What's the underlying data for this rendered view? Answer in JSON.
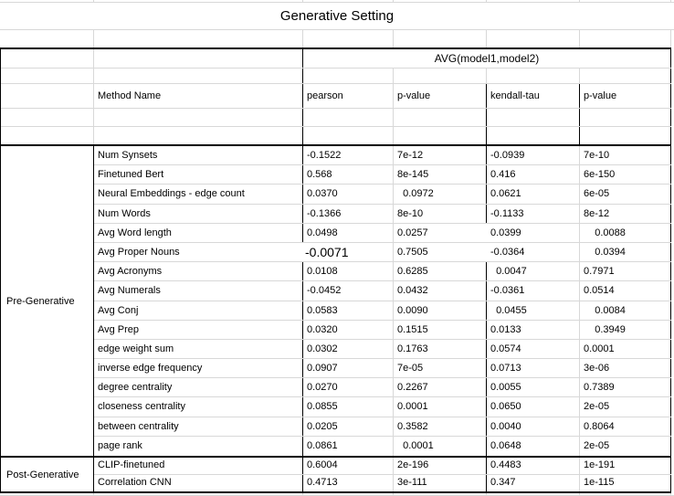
{
  "title": "Generative Setting",
  "header": {
    "group_header": "AVG(model1,model2)",
    "method_col": "Method Name",
    "cols": [
      "pearson",
      "p-value",
      "kendall-tau",
      "p-value"
    ]
  },
  "groups": [
    {
      "label": "Pre-Generative",
      "rows": [
        {
          "method": "Num Synsets",
          "pearson": "-0.1522",
          "p1": "7e-12",
          "kendall": "-0.0939",
          "p2": "7e-10",
          "flags": ""
        },
        {
          "method": "Finetuned Bert",
          "pearson": "0.568",
          "p1": "8e-145",
          "kendall": "0.416",
          "p2": "6e-150",
          "flags": ""
        },
        {
          "method": "Neural Embeddings - edge count",
          "pearson": "0.0370",
          "p1": "  0.0972",
          "kendall": "0.0621",
          "p2": "6e-05",
          "flags": ""
        },
        {
          "method": "Num Words",
          "pearson": "-0.1366",
          "p1": "8e-10",
          "kendall": "-0.1133",
          "p2": "8e-12",
          "flags": ""
        },
        {
          "method": "Avg Word length",
          "pearson": "0.0498",
          "p1": "0.0257",
          "kendall": "0.0399",
          "p2": "    0.0088",
          "flags": "nod"
        },
        {
          "method": "Avg Proper Nouns",
          "pearson": "-0.0071",
          "p1": "0.7505",
          "kendall": "-0.0364",
          "p2": "    0.0394",
          "flags": "big nob nod"
        },
        {
          "method": "Avg Acronyms",
          "pearson": "0.0108",
          "p1": "0.6285",
          "kendall": "  0.0047",
          "p2": "0.7971",
          "flags": ""
        },
        {
          "method": "Avg Numerals",
          "pearson": "-0.0452",
          "p1": "0.0432",
          "kendall": "-0.0361",
          "p2": "0.0514",
          "flags": ""
        },
        {
          "method": "Avg Conj",
          "pearson": "0.0583",
          "p1": "0.0090",
          "kendall": "  0.0455",
          "p2": "    0.0084",
          "flags": ""
        },
        {
          "method": "Avg Prep",
          "pearson": "0.0320",
          "p1": "0.1515",
          "kendall": "0.0133",
          "p2": "    0.3949",
          "flags": ""
        },
        {
          "method": "edge weight sum",
          "pearson": "0.0302",
          "p1": "0.1763",
          "kendall": "0.0574",
          "p2": "0.0001",
          "flags": ""
        },
        {
          "method": "inverse edge frequency",
          "pearson": "0.0907",
          "p1": "7e-05",
          "kendall": "0.0713",
          "p2": "3e-06",
          "flags": ""
        },
        {
          "method": "degree centrality",
          "pearson": "0.0270",
          "p1": "0.2267",
          "kendall": "0.0055",
          "p2": "0.7389",
          "flags": ""
        },
        {
          "method": "closeness centrality",
          "pearson": "0.0855",
          "p1": "0.0001",
          "kendall": "0.0650",
          "p2": "2e-05",
          "flags": ""
        },
        {
          "method": "between centrality",
          "pearson": "0.0205",
          "p1": "0.3582",
          "kendall": "0.0040",
          "p2": "0.8064",
          "flags": ""
        },
        {
          "method": "page rank",
          "pearson": "0.0861",
          "p1": "  0.0001",
          "kendall": "0.0648",
          "p2": "2e-05",
          "flags": ""
        }
      ]
    },
    {
      "label": "Post-Generative",
      "rows": [
        {
          "method": "CLIP-finetuned",
          "pearson": "0.6004",
          "p1": "2e-196",
          "kendall": "0.4483",
          "p2": "1e-191",
          "flags": ""
        },
        {
          "method": "Correlation CNN",
          "pearson": "0.4713",
          "p1": "3e-111",
          "kendall": "0.347",
          "p2": "1e-115",
          "flags": ""
        }
      ]
    }
  ],
  "colors": {
    "background": "#ffffff",
    "gridline": "#d8d8d8",
    "border": "#000000",
    "text": "#000000"
  }
}
